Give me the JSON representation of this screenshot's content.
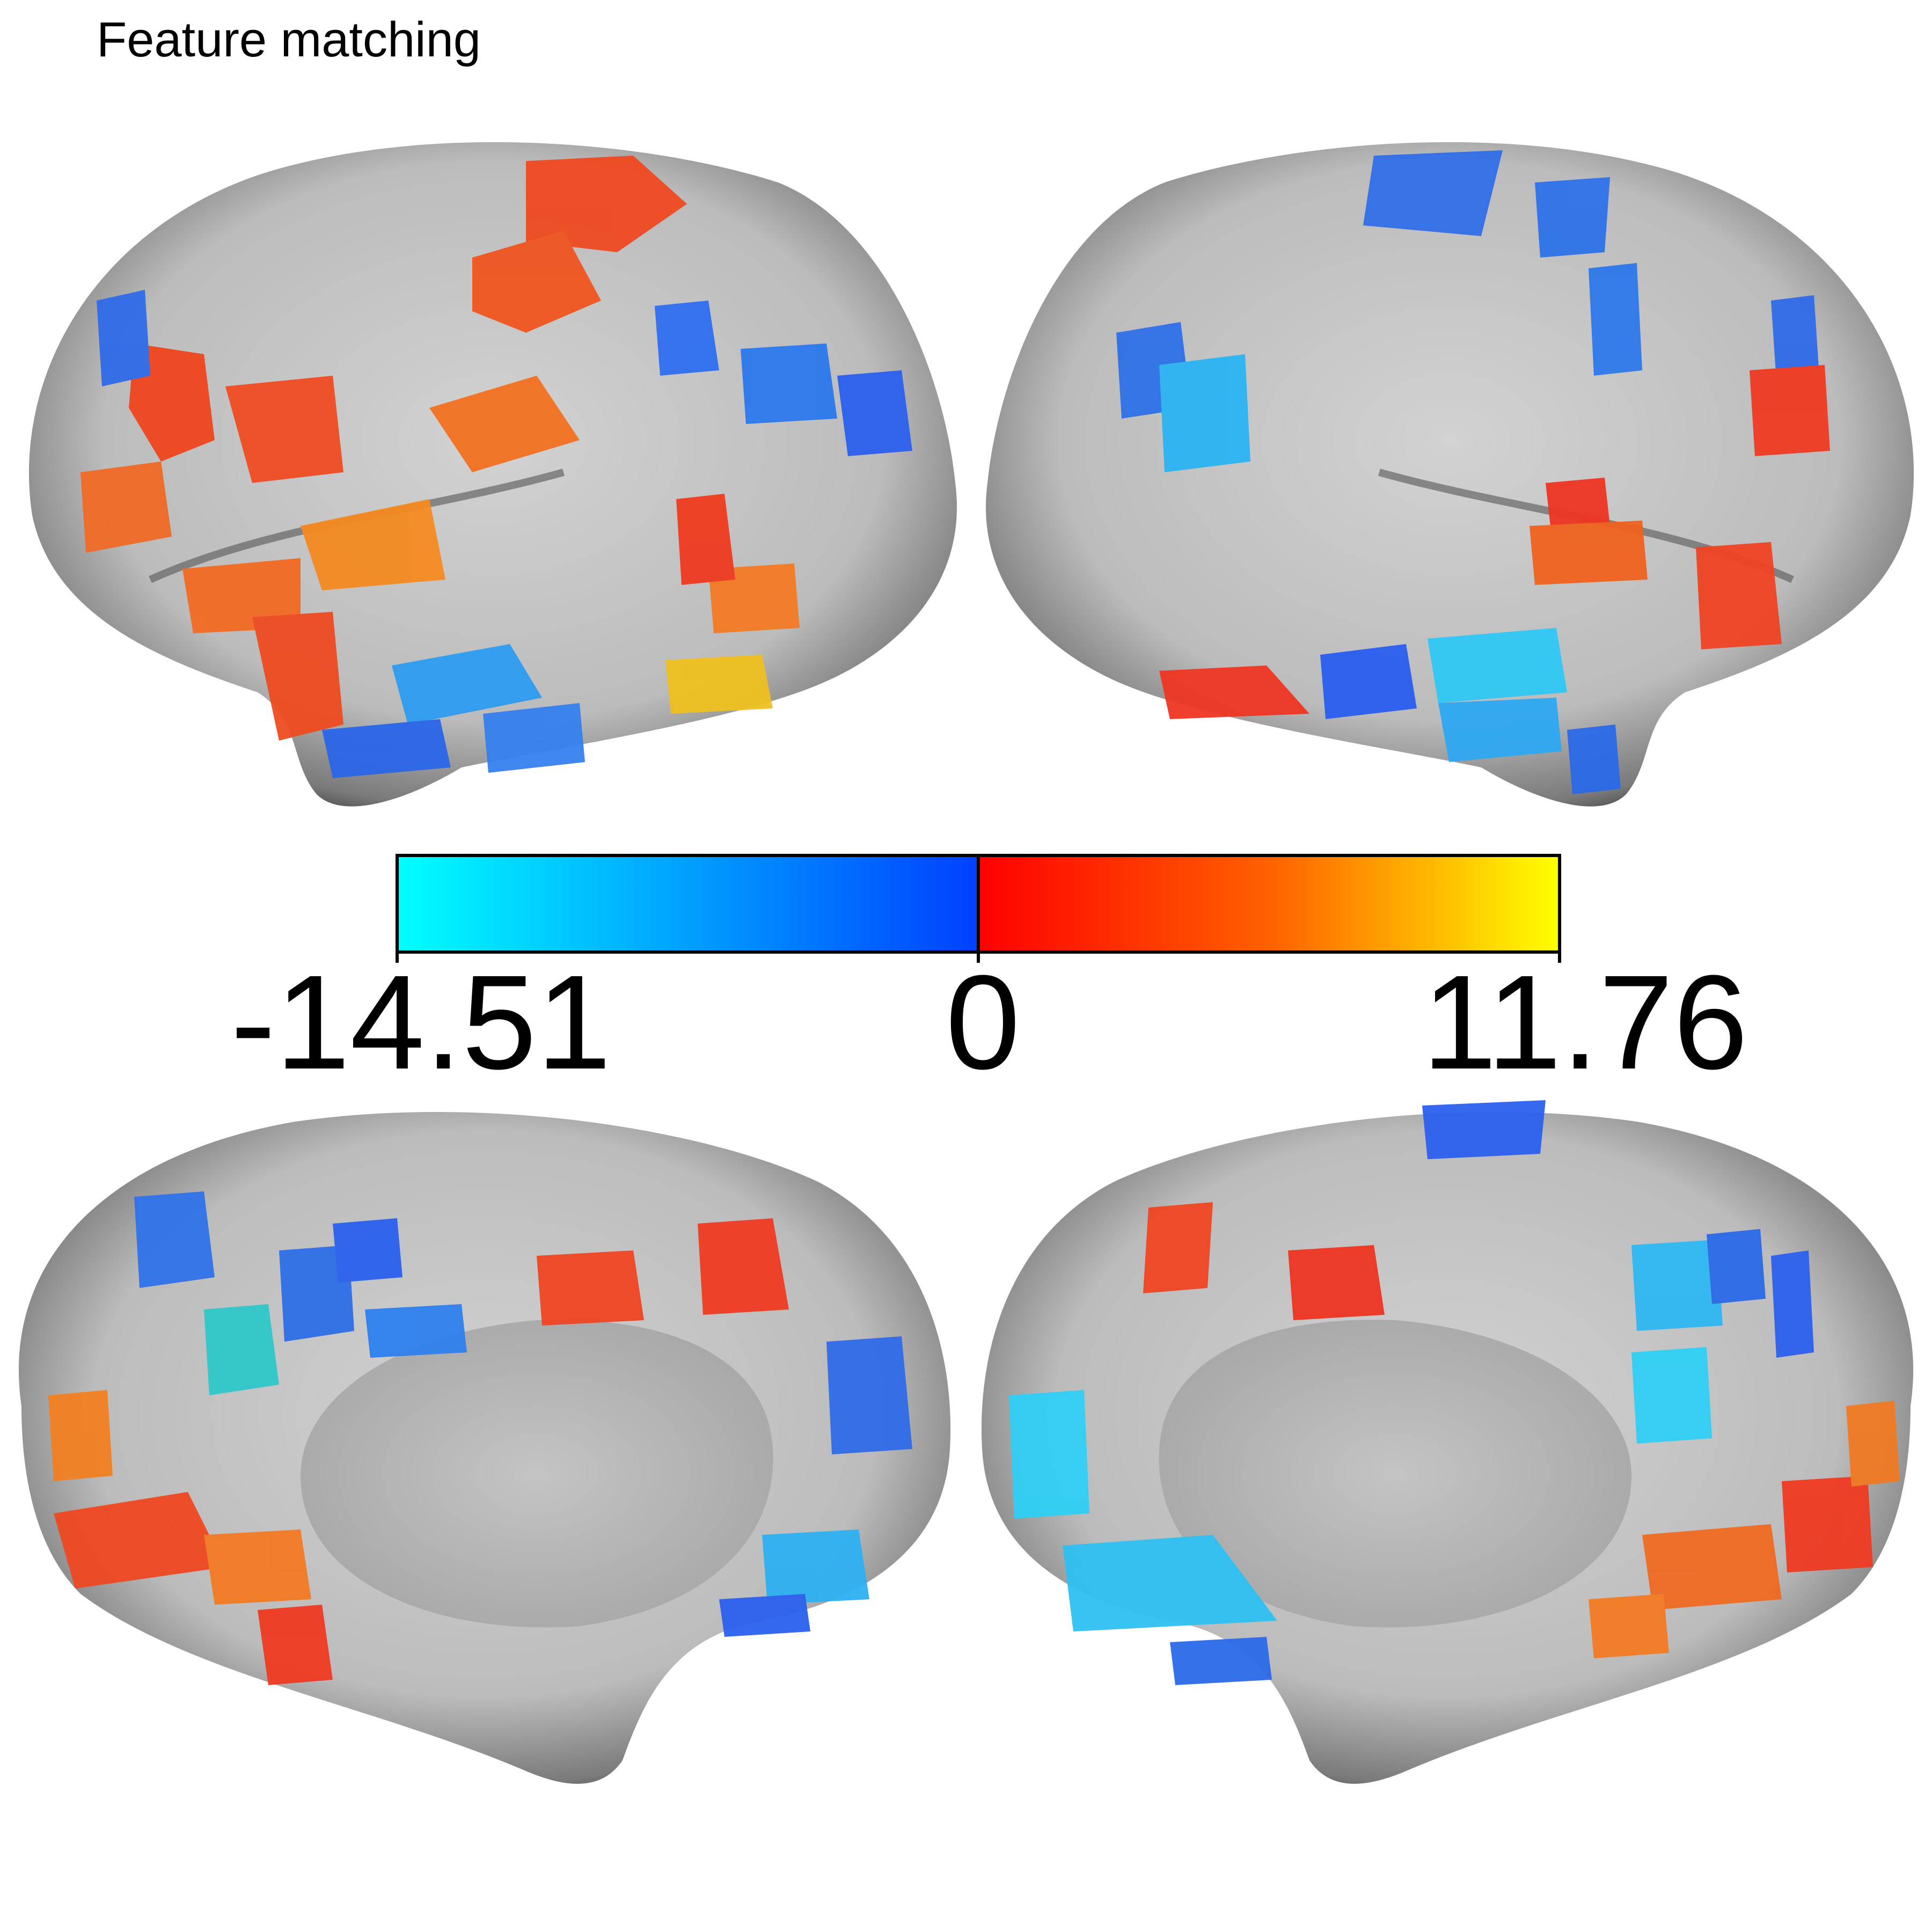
{
  "title": "Feature matching",
  "colorbar": {
    "min_label": "-14.51",
    "mid_label": "0",
    "max_label": "11.76",
    "min": -14.51,
    "mid": 0,
    "max": 11.76,
    "negative_colors": [
      "#00ffff",
      "#0040ff"
    ],
    "positive_colors": [
      "#ff0000",
      "#ff6000",
      "#ffff00"
    ]
  },
  "views": [
    "left-lateral",
    "right-lateral",
    "left-medial",
    "right-medial"
  ]
}
